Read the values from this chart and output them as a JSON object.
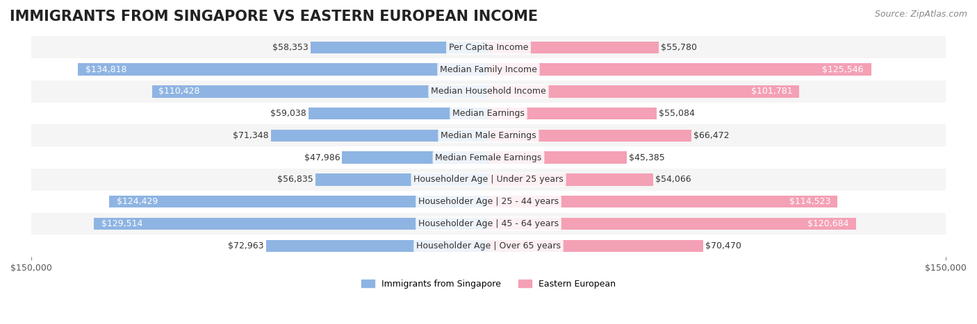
{
  "title": "IMMIGRANTS FROM SINGAPORE VS EASTERN EUROPEAN INCOME",
  "source": "Source: ZipAtlas.com",
  "categories": [
    "Per Capita Income",
    "Median Family Income",
    "Median Household Income",
    "Median Earnings",
    "Median Male Earnings",
    "Median Female Earnings",
    "Householder Age | Under 25 years",
    "Householder Age | 25 - 44 years",
    "Householder Age | 45 - 64 years",
    "Householder Age | Over 65 years"
  ],
  "singapore_values": [
    58353,
    134818,
    110428,
    59038,
    71348,
    47986,
    56835,
    124429,
    129514,
    72963
  ],
  "eastern_values": [
    55780,
    125546,
    101781,
    55084,
    66472,
    45385,
    54066,
    114523,
    120684,
    70470
  ],
  "singapore_color": "#8EB4E3",
  "eastern_color": "#F4A0B5",
  "singapore_label": "Immigrants from Singapore",
  "eastern_label": "Eastern European",
  "max_value": 150000,
  "bg_row_even": "#f5f5f5",
  "bg_row_odd": "#ffffff",
  "bar_height": 0.55,
  "title_fontsize": 15,
  "label_fontsize": 9,
  "tick_fontsize": 9,
  "source_fontsize": 9
}
